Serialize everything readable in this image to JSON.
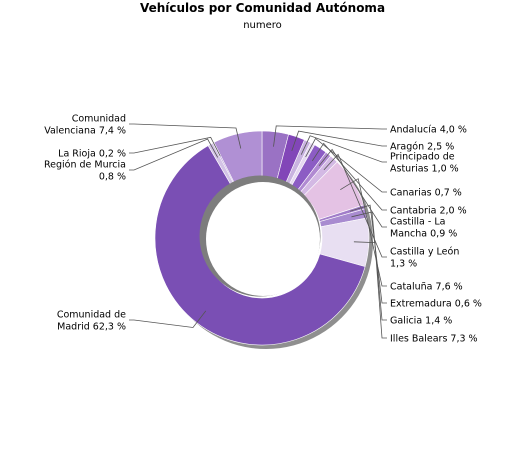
{
  "chart_data": {
    "type": "pie",
    "title": "Vehículos por Comunidad Autónoma",
    "subtitle": "numero",
    "slices": [
      {
        "label": [
          "Andalucía 4,0 %"
        ],
        "value": 4.0,
        "color": "#9a72c4"
      },
      {
        "label": [
          "Aragón 2,5 %"
        ],
        "value": 2.5,
        "color": "#8246b8"
      },
      {
        "label": [
          "Principado de",
          "Asturias 1,0 %"
        ],
        "value": 1.0,
        "color": "#c9b3e0"
      },
      {
        "label": [
          "Canarias 0,7 %"
        ],
        "value": 0.7,
        "color": "#e6d9f1"
      },
      {
        "label": [
          "Cantabria 2,0 %"
        ],
        "value": 2.0,
        "color": "#8c5cc4"
      },
      {
        "label": [
          "Castilla - La",
          "Mancha 0,9 %"
        ],
        "value": 0.9,
        "color": "#b08ad2"
      },
      {
        "label": [
          "Castilla y León",
          "1,3 %"
        ],
        "value": 1.3,
        "color": "#d3b9e4"
      },
      {
        "label": [
          "Cataluña 7,6 %"
        ],
        "value": 7.6,
        "color": "#e4c2e4"
      },
      {
        "label": [
          "Extremadura 0,6 %"
        ],
        "value": 0.6,
        "color": "#a17dc9"
      },
      {
        "label": [
          "Galicia 1,4 %"
        ],
        "value": 1.4,
        "color": "#a88bd0"
      },
      {
        "label": [
          "Illes Balears 7,3 %"
        ],
        "value": 7.3,
        "color": "#e8dff2"
      },
      {
        "label": [
          "Comunidad de",
          "Madrid 62,3 %"
        ],
        "value": 62.3,
        "color": "#7a4fb4"
      },
      {
        "label": [
          "Región de Murcia",
          "0,8 %"
        ],
        "value": 0.8,
        "color": "#d3c3e6"
      },
      {
        "label": [
          "La Rioja 0,2 %"
        ],
        "value": 0.2,
        "color": "#9c7ac6"
      },
      {
        "label": [
          "Comunidad",
          "Valenciana 7,4 %"
        ],
        "value": 7.4,
        "color": "#b090d4"
      }
    ]
  }
}
